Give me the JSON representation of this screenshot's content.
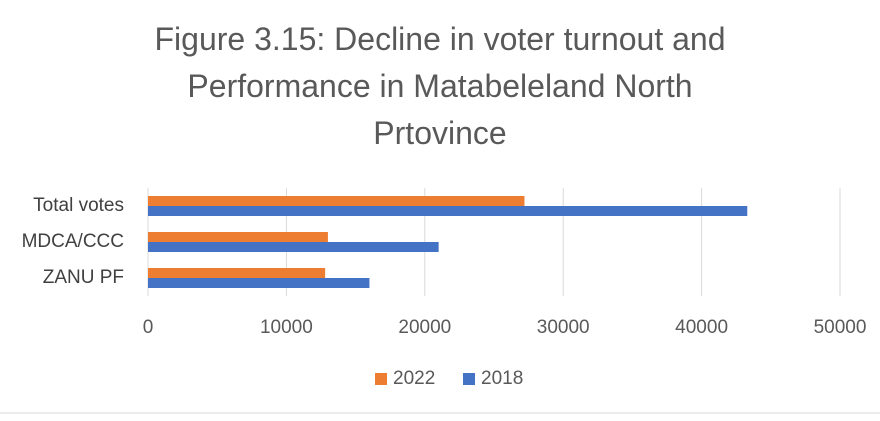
{
  "chart_data": {
    "type": "bar",
    "orientation": "horizontal",
    "title_lines": [
      "Figure 3.15: Decline in voter turnout and",
      "Performance in Matabeleland North",
      "Prtovince"
    ],
    "categories": [
      "Total votes",
      "MDCA/CCC",
      "ZANU PF"
    ],
    "series": [
      {
        "name": "2022",
        "color": "#ED7D31",
        "values": [
          27200,
          13000,
          12800
        ]
      },
      {
        "name": "2018",
        "color": "#4472C4",
        "values": [
          43300,
          21000,
          16000
        ]
      }
    ],
    "xlim": [
      0,
      50000
    ],
    "x_ticks": [
      0,
      10000,
      20000,
      30000,
      40000,
      50000
    ],
    "xlabel": "",
    "ylabel": "",
    "grid": true,
    "legend_position": "bottom"
  }
}
